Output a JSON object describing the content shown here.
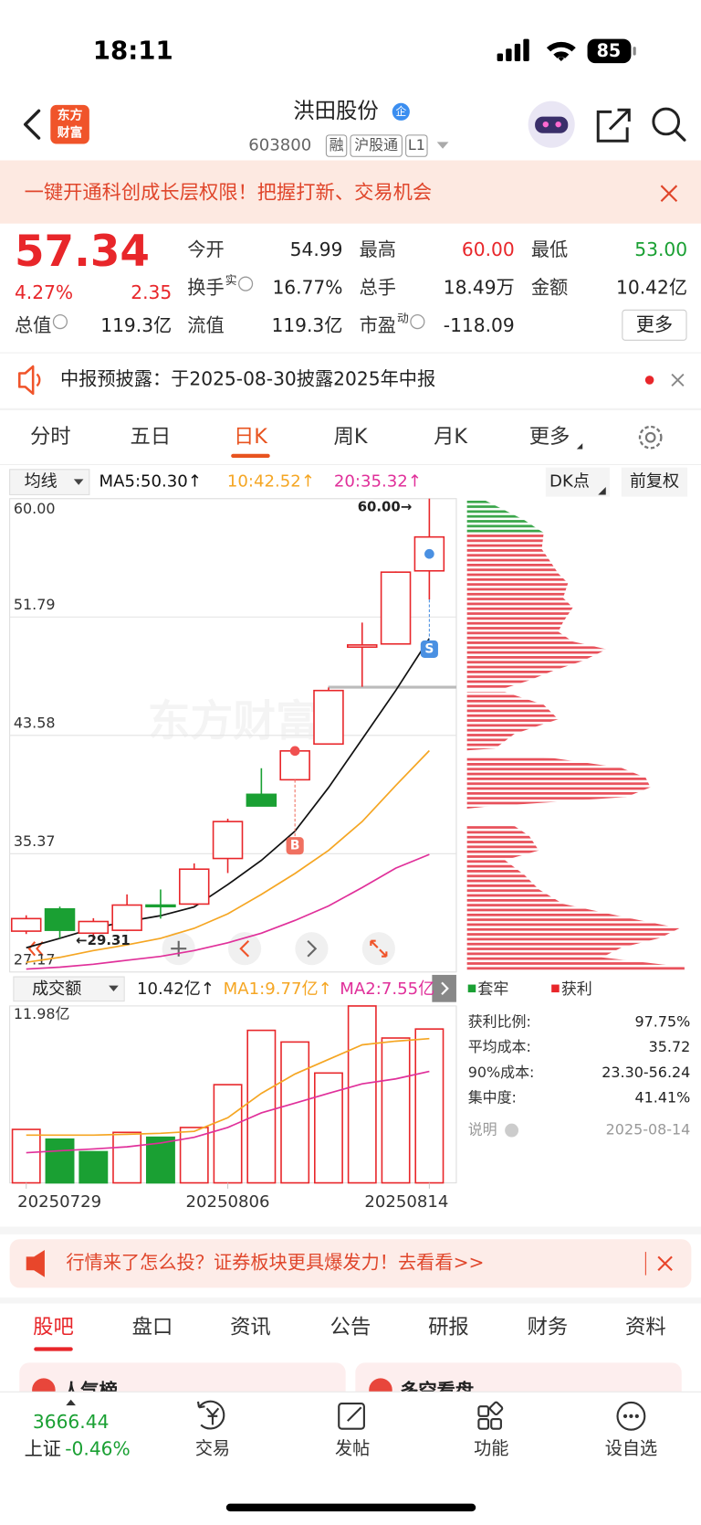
{
  "status": {
    "time": "18:11",
    "battery": "85"
  },
  "header": {
    "logo": [
      "东方",
      "财富"
    ],
    "name": "洪田股份",
    "badge": "企",
    "code": "603800",
    "tags": [
      "融",
      "沪股通",
      "L1"
    ]
  },
  "banner": {
    "text": "一键开通科创成长层权限！把握打新、交易机会"
  },
  "quote": {
    "price": "57.34",
    "change_pct": "4.27%",
    "change": "2.35",
    "fields": [
      {
        "label": "今开",
        "value": "54.99"
      },
      {
        "label": "最高",
        "value": "60.00"
      },
      {
        "label": "最低",
        "value": "53.00"
      },
      {
        "label": "换手",
        "sup": "实",
        "value": "16.77%"
      },
      {
        "label": "总手",
        "value": "18.49万"
      },
      {
        "label": "金额",
        "value": "10.42亿"
      },
      {
        "label": "总值",
        "value": "119.3亿"
      },
      {
        "label": "流值",
        "value": "119.3亿"
      },
      {
        "label": "市盈",
        "sup": "动",
        "value": "-118.09"
      }
    ],
    "more": "更多"
  },
  "notice": {
    "text": "中报预披露：于2025-08-30披露2025年中报"
  },
  "tabs": {
    "items": [
      "分时",
      "五日",
      "日K",
      "周K",
      "月K",
      "更多"
    ],
    "active": 2
  },
  "chart_toolbar": {
    "selector": "均线",
    "dk": "DK点",
    "adjust": "前复权"
  },
  "watermark": "东方财富",
  "chart_data": [
    {
      "type": "candlestick",
      "up_color": "#e8262a",
      "down_color": "#1aa033",
      "open": [
        30.0,
        31.54,
        29.86,
        30.06,
        31.81,
        31.88,
        35.04,
        39.49,
        40.5,
        42.98,
        49.7,
        49.92,
        54.99
      ],
      "high": [
        31.1,
        31.7,
        30.9,
        32.55,
        32.89,
        34.7,
        37.8,
        41.3,
        42.5,
        46.9,
        51.4,
        54.95,
        60.0
      ],
      "low": [
        29.8,
        29.5,
        29.31,
        30.0,
        30.87,
        31.8,
        34.03,
        38.68,
        40.5,
        42.98,
        46.95,
        49.92,
        53.0
      ],
      "close": [
        30.87,
        30.06,
        30.67,
        31.81,
        31.7,
        34.3,
        37.6,
        38.68,
        42.5,
        46.69,
        49.85,
        54.9,
        57.34
      ],
      "series": [
        {
          "color": "#111111",
          "values": [
            28.85,
            29.5,
            30.2,
            30.67,
            31.07,
            31.68,
            33.23,
            34.91,
            36.93,
            39.96,
            43.32,
            46.69,
            50.3
          ]
        },
        {
          "color": "#f5a623",
          "values": [
            27.84,
            28.18,
            28.65,
            29.05,
            29.5,
            30.2,
            31.2,
            32.55,
            34.0,
            35.6,
            37.6,
            40.1,
            42.52
          ]
        },
        {
          "color": "#e0309a",
          "values": [
            27.37,
            27.5,
            27.7,
            27.98,
            28.25,
            28.65,
            29.19,
            29.86,
            30.74,
            31.75,
            33.02,
            34.37,
            35.32
          ]
        }
      ],
      "ma_labels": [
        "MA5:50.30↑",
        "10:42.52↑",
        "20:35.32↑"
      ],
      "ylim": [
        27.17,
        60.0
      ],
      "yticks": [
        {
          "value": 60,
          "label": "60.00"
        },
        51.79,
        43.58,
        35.37,
        27.17
      ],
      "annotations": [
        "60.00→",
        "←29.31"
      ],
      "signals": [
        {
          "label": "B",
          "index": 8
        },
        {
          "label": "S",
          "index": 12
        }
      ]
    },
    {
      "type": "bar",
      "categories": [
        "20250729",
        null,
        null,
        null,
        null,
        null,
        "20250806",
        null,
        null,
        null,
        null,
        null,
        "20250814"
      ],
      "values": [
        3.62,
        2.96,
        2.11,
        3.42,
        3.09,
        3.75,
        6.65,
        10.33,
        9.54,
        7.44,
        11.98,
        9.81,
        10.42
      ],
      "colors": [
        "#e8262a",
        "#1aa033",
        "#1aa033",
        "#e8262a",
        "#1aa033",
        "#e8262a",
        "#e8262a",
        "#e8262a",
        "#e8262a",
        "#e8262a",
        "#e8262a",
        "#e8262a",
        "#e8262a"
      ],
      "series": [
        {
          "color": "#f5a623",
          "values": [
            3.23,
            3.23,
            3.23,
            3.29,
            3.36,
            3.49,
            4.41,
            6.06,
            7.37,
            8.36,
            9.35,
            9.6,
            9.77
          ]
        },
        {
          "color": "#e0309a",
          "values": [
            2.04,
            2.17,
            2.3,
            2.44,
            2.7,
            3.09,
            3.75,
            4.74,
            5.4,
            6.06,
            6.71,
            7.04,
            7.55
          ]
        }
      ],
      "ylim": [
        0,
        11.98
      ],
      "yticks": [
        {
          "value": 11.98,
          "label": "11.98亿"
        }
      ],
      "labels": {
        "title": "成交额",
        "current": "10.42亿↑",
        "ma": [
          "MA1:9.77亿↑",
          "MA2:7.55亿"
        ]
      }
    }
  ],
  "chips": {
    "legend": [
      "套牢",
      "获利"
    ],
    "stats": [
      {
        "label": "获利比例:",
        "value": "97.75%"
      },
      {
        "label": "平均成本:",
        "value": "35.72"
      },
      {
        "label": "90%成本:",
        "value": "23.30-56.24"
      },
      {
        "label": "集中度:",
        "value": "41.41%"
      }
    ],
    "note": "说明",
    "date": "2025-08-14"
  },
  "ad": {
    "text": "行情来了怎么投？证券板块更具爆发力！去看看>>"
  },
  "bottom_tabs": {
    "items": [
      "股吧",
      "盘口",
      "资讯",
      "公告",
      "研报",
      "财务",
      "资料"
    ],
    "active": 0
  },
  "feature_cards": [
    "人气榜",
    "多空看盘"
  ],
  "nav": {
    "index_value": "3666.44",
    "index_name": "上证",
    "index_change": "-0.46%",
    "items": [
      "交易",
      "发帖",
      "功能",
      "设自选"
    ]
  }
}
